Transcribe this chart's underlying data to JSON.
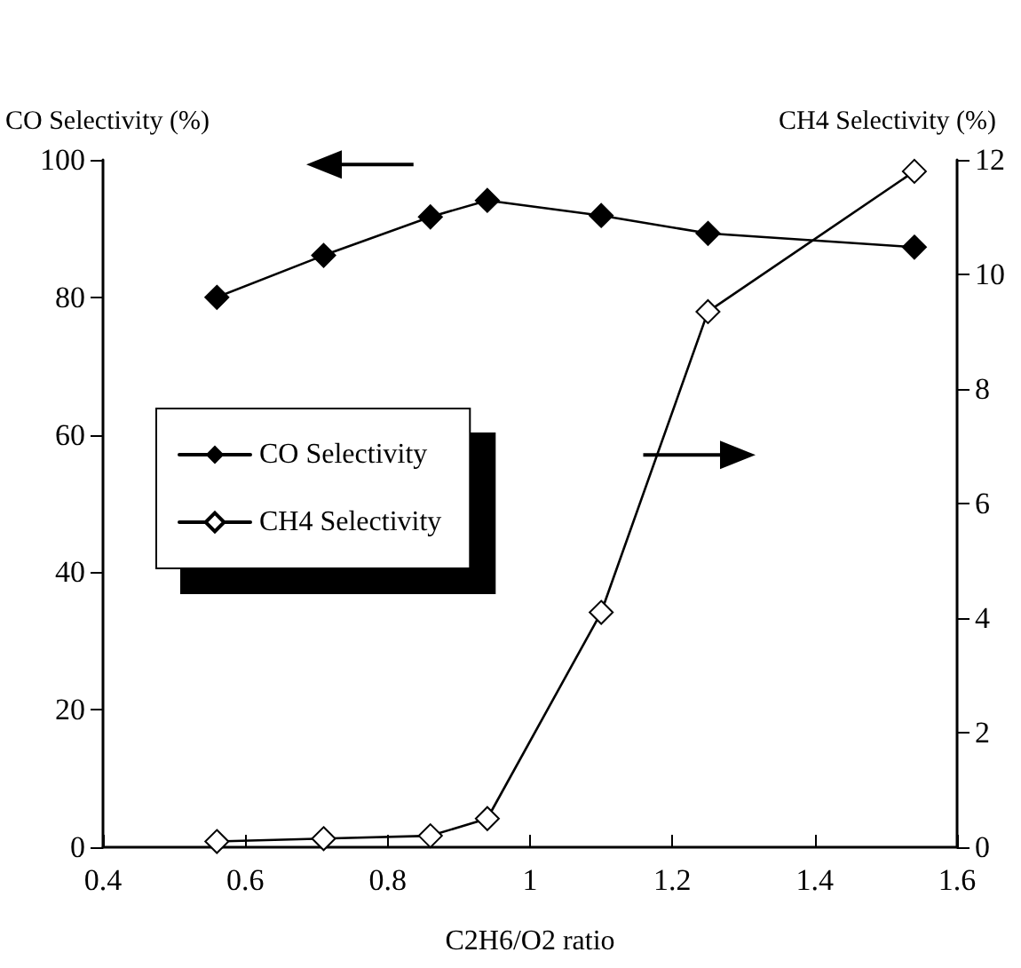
{
  "chart_data": {
    "type": "line",
    "xlabel": "C2H6/O2 ratio",
    "ylabel": "CO Selectivity (%)",
    "y2label": "CH4 Selectivity (%)",
    "x": [
      0.56,
      0.71,
      0.86,
      0.94,
      1.1,
      1.25,
      1.54
    ],
    "series": [
      {
        "name": "CO Selectivity",
        "color": "#000000",
        "marker": "diamond",
        "values": [
          80.0,
          86.1,
          91.7,
          94.1,
          91.9,
          89.3,
          87.3
        ]
      },
      {
        "name": "CH4 Selectivity",
        "color": "#000000",
        "marker": "diamond",
        "axis": "y2",
        "values": [
          0.1,
          0.15,
          0.2,
          0.5,
          4.1,
          9.35,
          11.8
        ]
      }
    ],
    "xlim": [
      0.4,
      1.6
    ],
    "xticks": [
      0.4,
      0.6,
      0.8,
      1,
      1.2,
      1.4,
      1.6
    ],
    "ylim": [
      0,
      100
    ],
    "yticks": [
      0,
      20,
      40,
      60,
      80,
      100
    ],
    "y2lim": [
      0,
      12
    ],
    "y2ticks": [
      0,
      2,
      4,
      6,
      8,
      10,
      12
    ],
    "grid": false,
    "legend": "left",
    "line_style": "solid"
  }
}
